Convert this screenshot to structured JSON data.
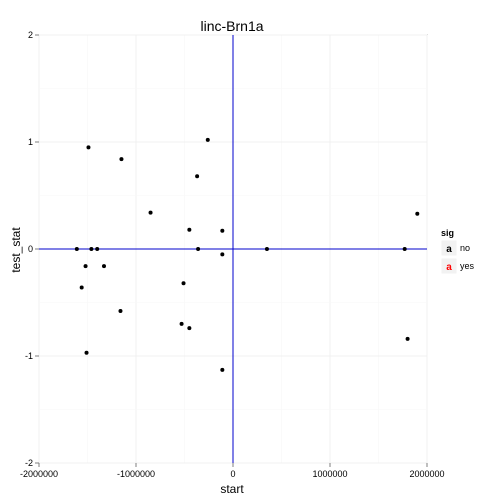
{
  "chart_data": {
    "type": "scatter",
    "title": "linc-Brn1a",
    "xlabel": "start",
    "ylabel": "test_stat",
    "xlim": [
      -2000000,
      2000000
    ],
    "ylim": [
      -2,
      2
    ],
    "x_ticks": [
      -2000000,
      -1000000,
      0,
      1000000,
      2000000
    ],
    "x_tick_labels": [
      "-2000000",
      "-1000000",
      "0",
      "1000000",
      "2000000"
    ],
    "y_ticks": [
      -2,
      -1,
      0,
      1,
      2
    ],
    "y_tick_labels": [
      "-2",
      "-1",
      "0",
      "1",
      "2"
    ],
    "reference_lines": {
      "x": 0,
      "y": 0,
      "color": "#0000cc"
    },
    "grid": true,
    "legend": {
      "title": "sig",
      "placement": "right",
      "entries": [
        {
          "label": "no",
          "color": "#000000",
          "glyph": "a"
        },
        {
          "label": "yes",
          "color": "#ff0000",
          "glyph": "a"
        }
      ]
    },
    "series": [
      {
        "name": "no",
        "color": "#000000",
        "points": [
          [
            -1490000,
            0.95
          ],
          [
            -1150000,
            0.84
          ],
          [
            -260000,
            1.02
          ],
          [
            -370000,
            0.68
          ],
          [
            -850000,
            0.34
          ],
          [
            -450000,
            0.18
          ],
          [
            -110000,
            0.17
          ],
          [
            1900000,
            0.33
          ],
          [
            -1610000,
            0.0
          ],
          [
            -1460000,
            0.0
          ],
          [
            -1400000,
            0.0
          ],
          [
            -360000,
            0.0
          ],
          [
            350000,
            0.0
          ],
          [
            1770000,
            0.0
          ],
          [
            -110000,
            -0.05
          ],
          [
            -1520000,
            -0.16
          ],
          [
            -1330000,
            -0.16
          ],
          [
            -510000,
            -0.32
          ],
          [
            -1560000,
            -0.36
          ],
          [
            -1160000,
            -0.58
          ],
          [
            -530000,
            -0.7
          ],
          [
            -450000,
            -0.74
          ],
          [
            1800000,
            -0.84
          ],
          [
            -1510000,
            -0.97
          ],
          [
            -110000,
            -1.13
          ]
        ]
      }
    ]
  }
}
